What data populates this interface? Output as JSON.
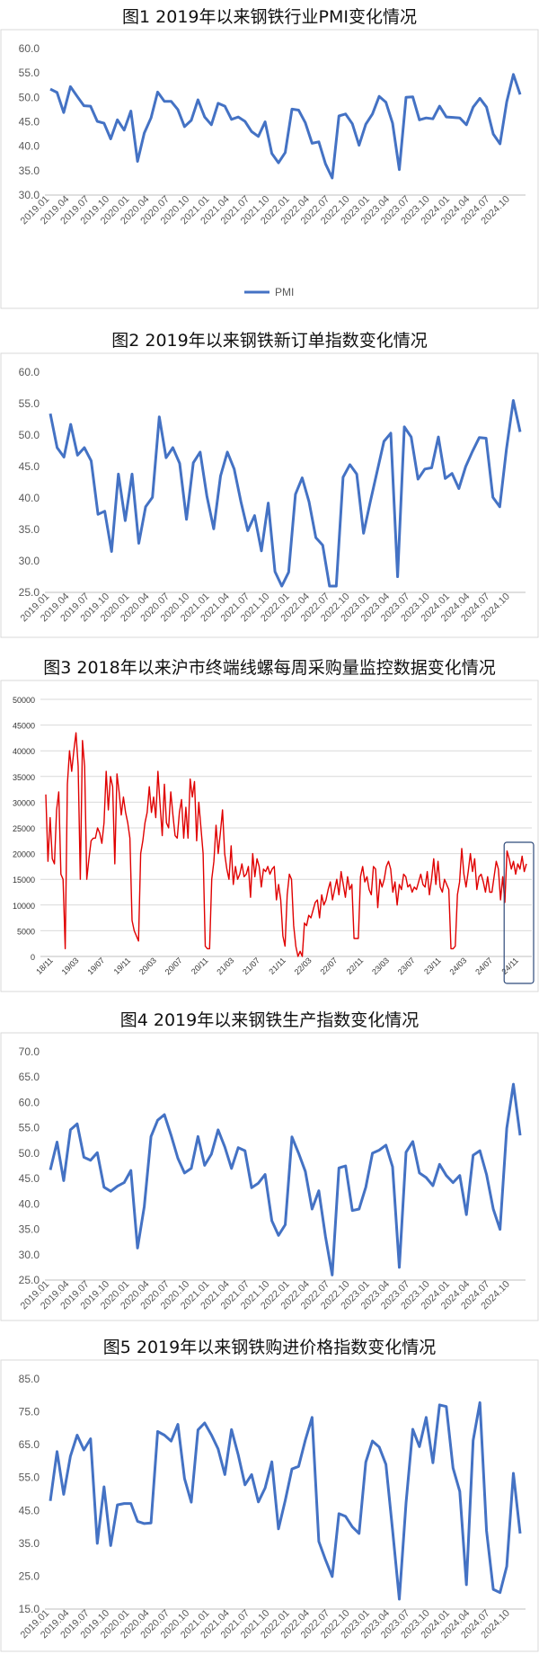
{
  "titles": {
    "fig1": "图1  2019年以来钢铁行业PMI变化情况",
    "fig2": "图2  2019年以来钢铁新订单指数变化情况",
    "fig3": "图3  2018年以来沪市终端线螺每周采购量监控数据变化情况",
    "fig4": "图4  2019年以来钢铁生产指数变化情况",
    "fig5": "图5  2019年以来钢铁购进价格指数变化情况"
  },
  "colors": {
    "blue": "#4472C4",
    "red": "#E00000",
    "frame": "#D9D9D9",
    "highlight": "#2E4A7A"
  },
  "chart_data": [
    {
      "id": "fig1",
      "type": "line",
      "title": "图1  2019年以来钢铁行业PMI变化情况",
      "ylim": [
        30,
        60
      ],
      "yticks": [
        "30.0",
        "35.0",
        "40.0",
        "45.0",
        "50.0",
        "55.0",
        "60.0"
      ],
      "xticks": [
        "2019.01",
        "2019.04",
        "2019.07",
        "2019.10",
        "2020.01",
        "2020.04",
        "2020.07",
        "2020.10",
        "2021.01",
        "2021.04",
        "2021.07",
        "2021.10",
        "2022.01",
        "2022.04",
        "2022.07",
        "2022.10",
        "2023.01",
        "2023.04",
        "2023.07",
        "2023.10",
        "2024.01",
        "2024.04",
        "2024.07",
        "2024.10"
      ],
      "legend": "PMI",
      "grid": false,
      "series": [
        {
          "name": "PMI",
          "values": [
            51.7,
            51.0,
            46.9,
            52.2,
            50.2,
            48.3,
            48.2,
            45.1,
            44.7,
            41.5,
            45.4,
            43.3,
            47.2,
            36.9,
            42.7,
            45.8,
            51.1,
            49.2,
            49.2,
            47.5,
            44.0,
            45.3,
            49.5,
            46.0,
            44.4,
            48.8,
            48.2,
            45.5,
            46.0,
            45.1,
            43.0,
            42.0,
            45.0,
            38.5,
            36.6,
            38.7,
            47.6,
            47.4,
            44.8,
            40.6,
            40.9,
            36.4,
            33.5,
            46.2,
            46.6,
            44.6,
            40.2,
            44.5,
            46.6,
            50.2,
            49.0,
            44.7,
            35.2,
            50.0,
            50.1,
            45.4,
            45.8,
            45.6,
            48.2,
            46.0,
            45.9,
            45.8,
            44.4,
            48.0,
            49.8,
            48.0,
            42.5,
            40.5,
            49.1,
            54.7,
            50.6
          ]
        }
      ]
    },
    {
      "id": "fig2",
      "type": "line",
      "title": "图2  2019年以来钢铁新订单指数变化情况",
      "ylim": [
        25,
        60
      ],
      "yticks": [
        "25.0",
        "30.0",
        "35.0",
        "40.0",
        "45.0",
        "50.0",
        "55.0",
        "60.0"
      ],
      "xticks": [
        "2019.01",
        "2019.04",
        "2019.07",
        "2019.10",
        "2020.01",
        "2020.04",
        "2020.07",
        "2020.10",
        "2021.01",
        "2021.04",
        "2021.07",
        "2021.10",
        "2022.01",
        "2022.04",
        "2022.07",
        "2022.10",
        "2023.01",
        "2023.04",
        "2023.07",
        "2023.10",
        "2024.01",
        "2024.04",
        "2024.07",
        "2024.10"
      ],
      "grid": false,
      "series": [
        {
          "values": [
            53.4,
            48.0,
            46.5,
            51.7,
            46.8,
            48.0,
            45.9,
            37.4,
            37.9,
            31.5,
            43.8,
            36.4,
            43.8,
            32.8,
            38.6,
            40.1,
            52.9,
            46.4,
            48.0,
            45.5,
            36.6,
            45.6,
            47.3,
            40.3,
            35.1,
            43.5,
            47.3,
            44.6,
            39.4,
            34.8,
            37.2,
            31.6,
            39.2,
            28.3,
            26.0,
            28.2,
            40.6,
            43.2,
            39.4,
            33.7,
            32.5,
            26.0,
            26.0,
            43.3,
            45.3,
            43.8,
            34.4,
            39.4,
            44.2,
            49.0,
            50.3,
            27.5,
            51.3,
            49.7,
            43.0,
            44.6,
            44.8,
            49.7,
            43.1,
            43.9,
            41.5,
            45.0,
            47.4,
            49.6,
            49.5,
            40.1,
            38.6,
            47.8,
            55.5,
            50.5
          ]
        }
      ]
    },
    {
      "id": "fig3",
      "type": "line",
      "title": "图3  2018年以来沪市终端线螺每周采购量监控数据变化情况",
      "ylim": [
        0,
        50000
      ],
      "yticks": [
        "0",
        "5000",
        "10000",
        "15000",
        "20000",
        "25000",
        "30000",
        "35000",
        "40000",
        "45000",
        "50000"
      ],
      "xticks": [
        "18/11",
        "19/03",
        "19/07",
        "19/11",
        "20/03",
        "20/07",
        "20/11",
        "21/03",
        "21/07",
        "21/11",
        "22/03",
        "22/07",
        "22/11",
        "23/03",
        "23/07",
        "23/11",
        "24/03",
        "24/07",
        "24/11"
      ],
      "grid": true,
      "series": [
        {
          "values": [
            31500,
            18500,
            27000,
            19000,
            18000,
            28500,
            32000,
            16000,
            15000,
            1500,
            33500,
            40000,
            36000,
            40000,
            43500,
            37000,
            15000,
            42000,
            37000,
            15000,
            19000,
            22500,
            23000,
            23000,
            25000,
            24000,
            22000,
            26000,
            36000,
            28500,
            35000,
            33000,
            18000,
            35500,
            32000,
            27500,
            31000,
            28000,
            26000,
            23000,
            7000,
            5000,
            4000,
            3000,
            20000,
            22500,
            26000,
            28000,
            33000,
            28000,
            31000,
            27000,
            36000,
            29500,
            23500,
            33500,
            26000,
            25000,
            32000,
            27500,
            23500,
            23000,
            28000,
            30500,
            23000,
            29000,
            23000,
            34500,
            31000,
            34000,
            22500,
            30000,
            25000,
            20000,
            2000,
            1500,
            1500,
            15000,
            18500,
            25500,
            20000,
            24000,
            28500,
            20000,
            17000,
            15000,
            21500,
            14000,
            17500,
            15000,
            16000,
            18000,
            15500,
            16000,
            17500,
            11500,
            20000,
            15500,
            19000,
            17500,
            13500,
            17000,
            16500,
            17500,
            16000,
            17000,
            17500,
            11000,
            14000,
            11000,
            4000,
            2000,
            12000,
            16000,
            15000,
            6000,
            2000,
            0,
            1000,
            0,
            6500,
            6000,
            8000,
            7500,
            9000,
            10500,
            11000,
            7500,
            12000,
            10000,
            11000,
            13000,
            14500,
            11000,
            13000,
            15000,
            12000,
            16500,
            14000,
            11500,
            15500,
            13000,
            14000,
            3500,
            3500,
            3500,
            15500,
            17500,
            14500,
            15500,
            13000,
            12000,
            17500,
            17000,
            9500,
            15000,
            13500,
            15000,
            17500,
            18500,
            17000,
            12500,
            14500,
            10000,
            14000,
            13000,
            16000,
            15500,
            13500,
            14000,
            12500,
            13500,
            13000,
            14500,
            16000,
            14000,
            13500,
            16500,
            12000,
            15000,
            19000,
            14000,
            18500,
            13500,
            12500,
            15000,
            14000,
            13000,
            1500,
            1500,
            2000,
            12000,
            14500,
            21000,
            16000,
            13500,
            16500,
            20000,
            16500,
            19000,
            13000,
            15500,
            16000,
            14500,
            12500,
            15500,
            12500,
            12500,
            15500,
            18500,
            17000,
            11000,
            15500,
            10500,
            20500,
            19000,
            17000,
            18500,
            16000,
            18000,
            17000,
            19500,
            16500,
            18000
          ]
        }
      ],
      "highlight": "24/11"
    },
    {
      "id": "fig4",
      "type": "line",
      "title": "图4  2019年以来钢铁生产指数变化情况",
      "ylim": [
        25,
        70
      ],
      "yticks": [
        "25.0",
        "30.0",
        "35.0",
        "40.0",
        "45.0",
        "50.0",
        "55.0",
        "60.0",
        "65.0",
        "70.0"
      ],
      "xticks": [
        "2019.01",
        "2019.04",
        "2019.07",
        "2019.10",
        "2020.01",
        "2020.04",
        "2020.07",
        "2020.10",
        "2021.01",
        "2021.04",
        "2021.07",
        "2021.10",
        "2022.01",
        "2022.04",
        "2022.07",
        "2022.10",
        "2023.01",
        "2023.04",
        "2023.07",
        "2023.10",
        "2024.01",
        "2024.04",
        "2024.07",
        "2024.10"
      ],
      "grid": false,
      "series": [
        {
          "values": [
            46.7,
            52.2,
            44.6,
            54.6,
            55.8,
            49.2,
            48.6,
            50.1,
            43.3,
            42.5,
            43.5,
            44.2,
            46.6,
            31.3,
            39.5,
            53.3,
            56.5,
            57.6,
            53.5,
            49.0,
            46.1,
            47.0,
            53.3,
            47.6,
            49.8,
            54.6,
            51.2,
            47.0,
            51.1,
            50.5,
            43.2,
            44.1,
            45.8,
            36.7,
            33.8,
            35.9,
            53.2,
            50.0,
            46.4,
            39.0,
            42.6,
            33.6,
            26.0,
            47.1,
            47.5,
            38.7,
            39.0,
            43.3,
            50.0,
            50.6,
            51.6,
            47.3,
            27.5,
            50.2,
            52.3,
            46.1,
            45.2,
            43.6,
            47.8,
            45.6,
            44.2,
            45.6,
            37.9,
            49.6,
            50.5,
            45.8,
            39.0,
            35.0,
            54.9,
            63.6,
            53.5
          ]
        }
      ]
    },
    {
      "id": "fig5",
      "type": "line",
      "title": "图5  2019年以来钢铁购进价格指数变化情况",
      "ylim": [
        15,
        85
      ],
      "yticks": [
        "15.0",
        "25.0",
        "35.0",
        "45.0",
        "55.0",
        "65.0",
        "75.0",
        "85.0"
      ],
      "xticks": [
        "2019.01",
        "2019.04",
        "2019.07",
        "2019.10",
        "2020.01",
        "2020.04",
        "2020.07",
        "2020.10",
        "2021.01",
        "2021.04",
        "2021.07",
        "2021.10",
        "2022.01",
        "2022.04",
        "2022.07",
        "2022.10",
        "2023.01",
        "2023.04",
        "2023.07",
        "2023.10",
        "2024.01",
        "2024.04",
        "2024.07",
        "2024.10"
      ],
      "grid": false,
      "series": [
        {
          "values": [
            47.9,
            62.9,
            49.9,
            61.5,
            67.9,
            63.4,
            66.8,
            35.0,
            52.2,
            34.3,
            46.7,
            47.1,
            47.1,
            41.7,
            41.0,
            41.2,
            69.0,
            67.9,
            66.1,
            71.2,
            54.7,
            47.5,
            69.5,
            71.6,
            68.0,
            63.7,
            55.9,
            69.6,
            61.9,
            52.8,
            55.9,
            47.6,
            51.8,
            59.8,
            39.4,
            48.0,
            57.6,
            58.4,
            66.4,
            73.3,
            35.6,
            30.0,
            24.9,
            44.0,
            43.2,
            40.0,
            38.0,
            59.7,
            66.1,
            64.3,
            59.0,
            39.0,
            18.0,
            47.3,
            69.7,
            64.4,
            73.3,
            59.5,
            77.1,
            76.6,
            57.9,
            50.8,
            22.4,
            66.3,
            77.8,
            38.8,
            21.0,
            20.0,
            28.0,
            56.3,
            38.0
          ]
        }
      ]
    }
  ]
}
